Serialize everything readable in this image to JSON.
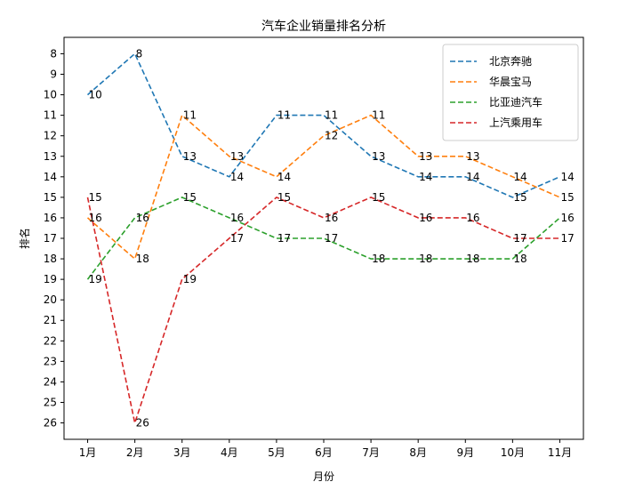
{
  "chart_data": {
    "type": "line",
    "title": "汽车企业销量排名分析",
    "xlabel": "月份",
    "ylabel": "排名",
    "categories": [
      "1月",
      "2月",
      "3月",
      "4月",
      "5月",
      "6月",
      "7月",
      "8月",
      "9月",
      "10月",
      "11月"
    ],
    "yticks": [
      "8",
      "9",
      "10",
      "11",
      "12",
      "13",
      "14",
      "15",
      "16",
      "17",
      "18",
      "19",
      "20",
      "21",
      "22",
      "23",
      "24",
      "25",
      "26"
    ],
    "y_inverted": true,
    "ylim": [
      26.8,
      7.2
    ],
    "grid": false,
    "legend_position": "top-right",
    "line_style": "dashed",
    "series": [
      {
        "name": "北京奔驰",
        "color": "#1f77b4",
        "values": [
          10,
          8,
          13,
          14,
          11,
          11,
          13,
          14,
          14,
          15,
          14
        ]
      },
      {
        "name": "华晨宝马",
        "color": "#ff7f0e",
        "values": [
          16,
          18,
          11,
          13,
          14,
          12,
          11,
          13,
          13,
          14,
          15
        ]
      },
      {
        "name": "比亚迪汽车",
        "color": "#2ca02c",
        "values": [
          19,
          16,
          15,
          16,
          17,
          17,
          18,
          18,
          18,
          18,
          16
        ]
      },
      {
        "name": "上汽乘用车",
        "color": "#d62728",
        "values": [
          15,
          26,
          19,
          17,
          15,
          16,
          15,
          16,
          16,
          17,
          17
        ]
      }
    ]
  }
}
